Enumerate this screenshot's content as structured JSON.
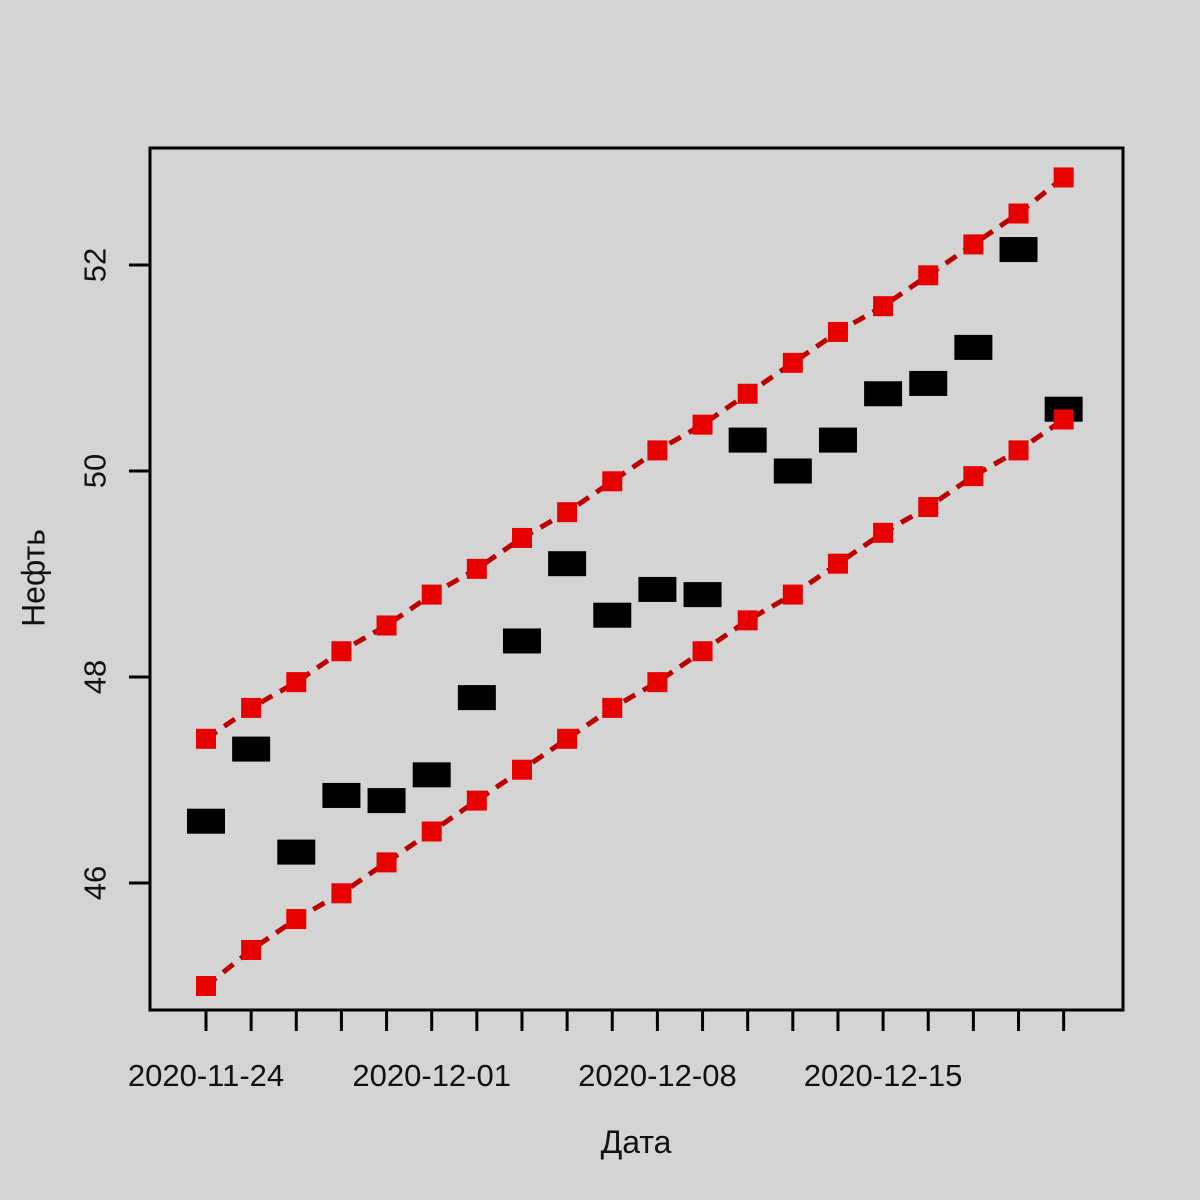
{
  "figure": {
    "background_color": "#d4d4d4",
    "border_color": "#000000",
    "accent_red": "#e60000",
    "dash_red": "#bb0000",
    "point_black": "#000000"
  },
  "chart_data": {
    "type": "scatter",
    "title": "",
    "xlabel": "Дата",
    "ylabel": "Нефть",
    "grid": false,
    "legend_position": "none",
    "x": [
      "2020-11-24",
      "2020-11-25",
      "2020-11-26",
      "2020-11-27",
      "2020-11-30",
      "2020-12-01",
      "2020-12-02",
      "2020-12-03",
      "2020-12-04",
      "2020-12-07",
      "2020-12-08",
      "2020-12-09",
      "2020-12-10",
      "2020-12-11",
      "2020-12-14",
      "2020-12-15",
      "2020-12-16",
      "2020-12-17",
      "2020-12-18",
      "2020-12-21"
    ],
    "x_tick_labels": [
      "2020-11-24",
      "2020-12-01",
      "2020-12-08",
      "2020-12-15"
    ],
    "x_tick_indices": [
      0,
      5,
      10,
      15
    ],
    "y_ticks": [
      46,
      48,
      50,
      52
    ],
    "ylim": [
      44.7,
      53.15
    ],
    "series": [
      {
        "name": "fact-black-squares",
        "marker": "filled-square",
        "color": "#000000",
        "line": "none",
        "values": [
          46.6,
          47.3,
          46.3,
          46.85,
          46.8,
          47.05,
          47.8,
          48.35,
          49.1,
          48.6,
          48.85,
          48.8,
          50.3,
          50.0,
          50.3,
          50.75,
          50.85,
          51.2,
          52.15,
          50.6
        ]
      },
      {
        "name": "upper-bound-red",
        "marker": "filled-square",
        "color": "#e60000",
        "line": "dashed",
        "values": [
          47.4,
          47.7,
          47.95,
          48.25,
          48.5,
          48.8,
          49.05,
          49.35,
          49.6,
          49.9,
          50.2,
          50.45,
          50.75,
          51.05,
          51.35,
          51.6,
          51.9,
          52.2,
          52.5,
          52.85
        ]
      },
      {
        "name": "lower-bound-red",
        "marker": "filled-square",
        "color": "#e60000",
        "line": "dashed",
        "values": [
          45.0,
          45.35,
          45.65,
          45.9,
          46.2,
          46.5,
          46.8,
          47.1,
          47.4,
          47.7,
          47.95,
          48.25,
          48.55,
          48.8,
          49.1,
          49.4,
          49.65,
          49.95,
          50.2,
          50.5
        ]
      }
    ]
  }
}
